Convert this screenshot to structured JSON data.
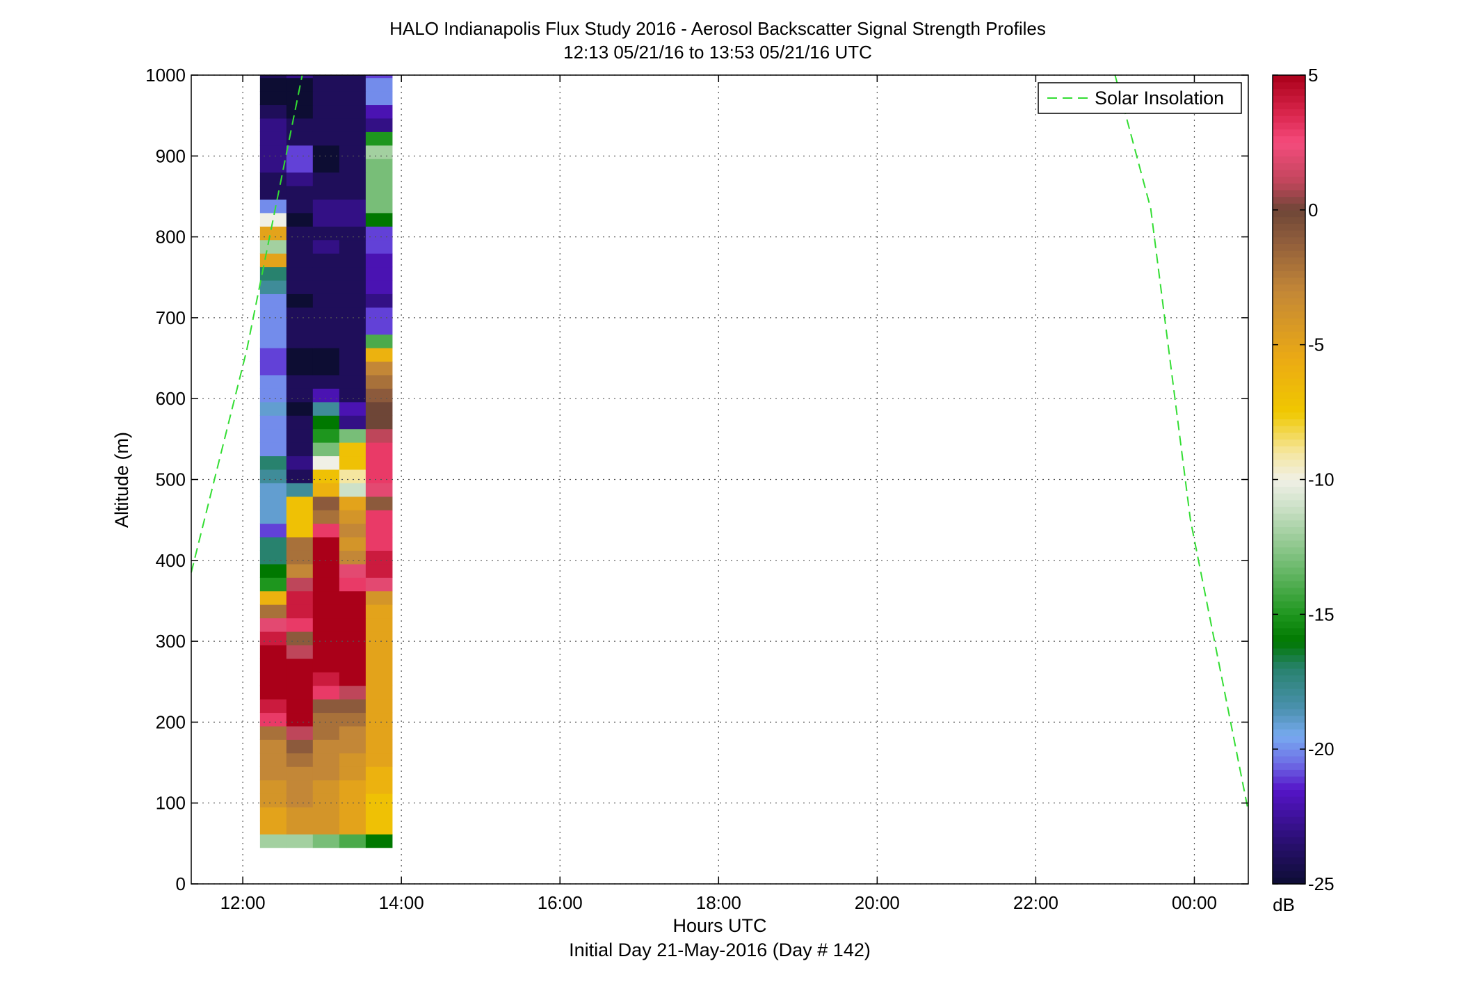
{
  "chart_data": {
    "type": "heatmap",
    "title": "HALO Indianapolis Flux Study 2016 - Aerosol Backscatter Signal Strength Profiles",
    "subtitle": "12:13 05/21/16 to 13:53 05/21/16  UTC",
    "xlabel": "Hours UTC",
    "xlabel2": "Initial Day 21-May-2016 (Day # 142)",
    "ylabel": "Altitude (m)",
    "xlim_hours": [
      11.35,
      24.68
    ],
    "ylim": [
      0,
      1000
    ],
    "x_ticks": [
      {
        "value": 12,
        "label": "12:00"
      },
      {
        "value": 14,
        "label": "14:00"
      },
      {
        "value": 16,
        "label": "16:00"
      },
      {
        "value": 18,
        "label": "18:00"
      },
      {
        "value": 20,
        "label": "20:00"
      },
      {
        "value": 22,
        "label": "22:00"
      },
      {
        "value": 24,
        "label": "00:00"
      }
    ],
    "y_ticks": [
      {
        "value": 0,
        "label": "0"
      },
      {
        "value": 100,
        "label": "100"
      },
      {
        "value": 200,
        "label": "200"
      },
      {
        "value": 300,
        "label": "300"
      },
      {
        "value": 400,
        "label": "400"
      },
      {
        "value": 500,
        "label": "500"
      },
      {
        "value": 600,
        "label": "600"
      },
      {
        "value": 700,
        "label": "700"
      },
      {
        "value": 800,
        "label": "800"
      },
      {
        "value": 900,
        "label": "900"
      },
      {
        "value": 1000,
        "label": "1000"
      }
    ],
    "grid": true,
    "colorbar": {
      "unit": "dB",
      "range": [
        -25,
        5
      ],
      "ticks": [
        {
          "value": 5,
          "label": "5"
        },
        {
          "value": 0,
          "label": "0"
        },
        {
          "value": -5,
          "label": "-5"
        },
        {
          "value": -10,
          "label": "-10"
        },
        {
          "value": -15,
          "label": "-15"
        },
        {
          "value": -20,
          "label": "-20"
        },
        {
          "value": -25,
          "label": "-25"
        }
      ]
    },
    "heatmap": {
      "x_hours": [
        12.217,
        12.55,
        12.883,
        13.217,
        13.55
      ],
      "bin_width_hours": 0.333,
      "y_start": 45,
      "bin_height_m": 16.7,
      "values_db": [
        [
          -12,
          -12,
          -13,
          -14,
          -16
        ],
        [
          -5,
          -4,
          -4,
          -5,
          -7
        ],
        [
          -5,
          -4,
          -4,
          -5,
          -7
        ],
        [
          -4,
          -3,
          -4,
          -5,
          -7
        ],
        [
          -4,
          -3,
          -4,
          -5,
          -6
        ],
        [
          -3,
          -3,
          -3,
          -4,
          -6
        ],
        [
          -3,
          -2,
          -3,
          -4,
          -5
        ],
        [
          -3,
          -1,
          -3,
          -3,
          -5
        ],
        [
          -2,
          1,
          -2,
          -3,
          -5
        ],
        [
          3,
          5,
          -2,
          -2,
          -5
        ],
        [
          4,
          5,
          -1,
          -1,
          -5
        ],
        [
          5,
          5,
          3,
          1,
          -5
        ],
        [
          5,
          5,
          4,
          5,
          -5
        ],
        [
          5,
          5,
          5,
          5,
          -5
        ],
        [
          5,
          1,
          5,
          5,
          -5
        ],
        [
          4,
          -1,
          5,
          5,
          -5
        ],
        [
          2,
          3,
          5,
          5,
          -5
        ],
        [
          -2,
          4,
          5,
          5,
          -5
        ],
        [
          -6,
          4,
          5,
          5,
          -4
        ],
        [
          -15,
          1,
          5,
          3,
          2
        ],
        [
          -16,
          -3,
          5,
          2,
          4
        ],
        [
          -17,
          -2,
          5,
          -3,
          4
        ],
        [
          -17,
          -2,
          5,
          -4,
          3
        ],
        [
          -21,
          -7,
          3,
          -3,
          3
        ],
        [
          -19,
          -7,
          -2,
          -4,
          3
        ],
        [
          -19,
          -7,
          -1,
          -5,
          -1
        ],
        [
          -19,
          -18,
          -6,
          -11,
          2
        ],
        [
          -18,
          -24,
          -7,
          -9,
          3
        ],
        [
          -17,
          -23,
          -10,
          -7,
          3
        ],
        [
          -20,
          -24,
          -13,
          -7,
          3
        ],
        [
          -20,
          -24,
          -15,
          -13,
          1
        ],
        [
          -20,
          -24,
          -16,
          -23,
          0
        ],
        [
          -19,
          -25,
          -18,
          -22,
          0
        ],
        [
          -20,
          -24,
          -22,
          -24,
          -1
        ],
        [
          -20,
          -24,
          -24,
          -24,
          -2
        ],
        [
          -21,
          -25,
          -25,
          -24,
          -3
        ],
        [
          -21,
          -25,
          -25,
          -24,
          -6
        ],
        [
          -20,
          -24,
          -24,
          -24,
          -14
        ],
        [
          -20,
          -24,
          -24,
          -24,
          -21
        ],
        [
          -20,
          -24,
          -24,
          -24,
          -21
        ],
        [
          -20,
          -25,
          -24,
          -24,
          -23
        ],
        [
          -18,
          -24,
          -24,
          -24,
          -22
        ],
        [
          -17,
          -24,
          -24,
          -24,
          -22
        ],
        [
          -5,
          -24,
          -24,
          -24,
          -22
        ],
        [
          -12,
          -24,
          -23,
          -24,
          -21
        ],
        [
          -5,
          -24,
          -24,
          -24,
          -21
        ],
        [
          -10,
          -25,
          -23,
          -23,
          -16
        ],
        [
          -20,
          -24,
          -23,
          -23,
          -13
        ],
        [
          -24,
          -24,
          -24,
          -24,
          -13
        ],
        [
          -24,
          -23,
          -24,
          -24,
          -13
        ],
        [
          -23,
          -21,
          -25,
          -24,
          -13
        ],
        [
          -23,
          -21,
          -25,
          -24,
          -12
        ],
        [
          -23,
          -24,
          -24,
          -24,
          -15
        ],
        [
          -23,
          -24,
          -24,
          -24,
          -23
        ],
        [
          -24,
          -25,
          -24,
          -24,
          -22
        ],
        [
          -25,
          -25,
          -24,
          -24,
          -20
        ],
        [
          -25,
          -25,
          -24,
          -24,
          -20
        ],
        [
          -24,
          -23,
          -24,
          -24,
          -21
        ],
        [
          -24,
          -23,
          -25,
          -25,
          -23
        ]
      ]
    },
    "series": [
      {
        "name": "Solar Insolation",
        "style": "dashed",
        "color": "#33dd33",
        "segments": [
          [
            [
              11.35,
              385
            ],
            [
              12.05,
              660
            ],
            [
              12.4,
              830
            ],
            [
              12.75,
              1000
            ]
          ],
          [
            [
              23.0,
              1000
            ],
            [
              23.45,
              835
            ],
            [
              23.95,
              450
            ],
            [
              24.68,
              90
            ]
          ]
        ]
      }
    ],
    "legend": {
      "position": "top-right",
      "entries": [
        "Solar Insolation"
      ]
    }
  }
}
